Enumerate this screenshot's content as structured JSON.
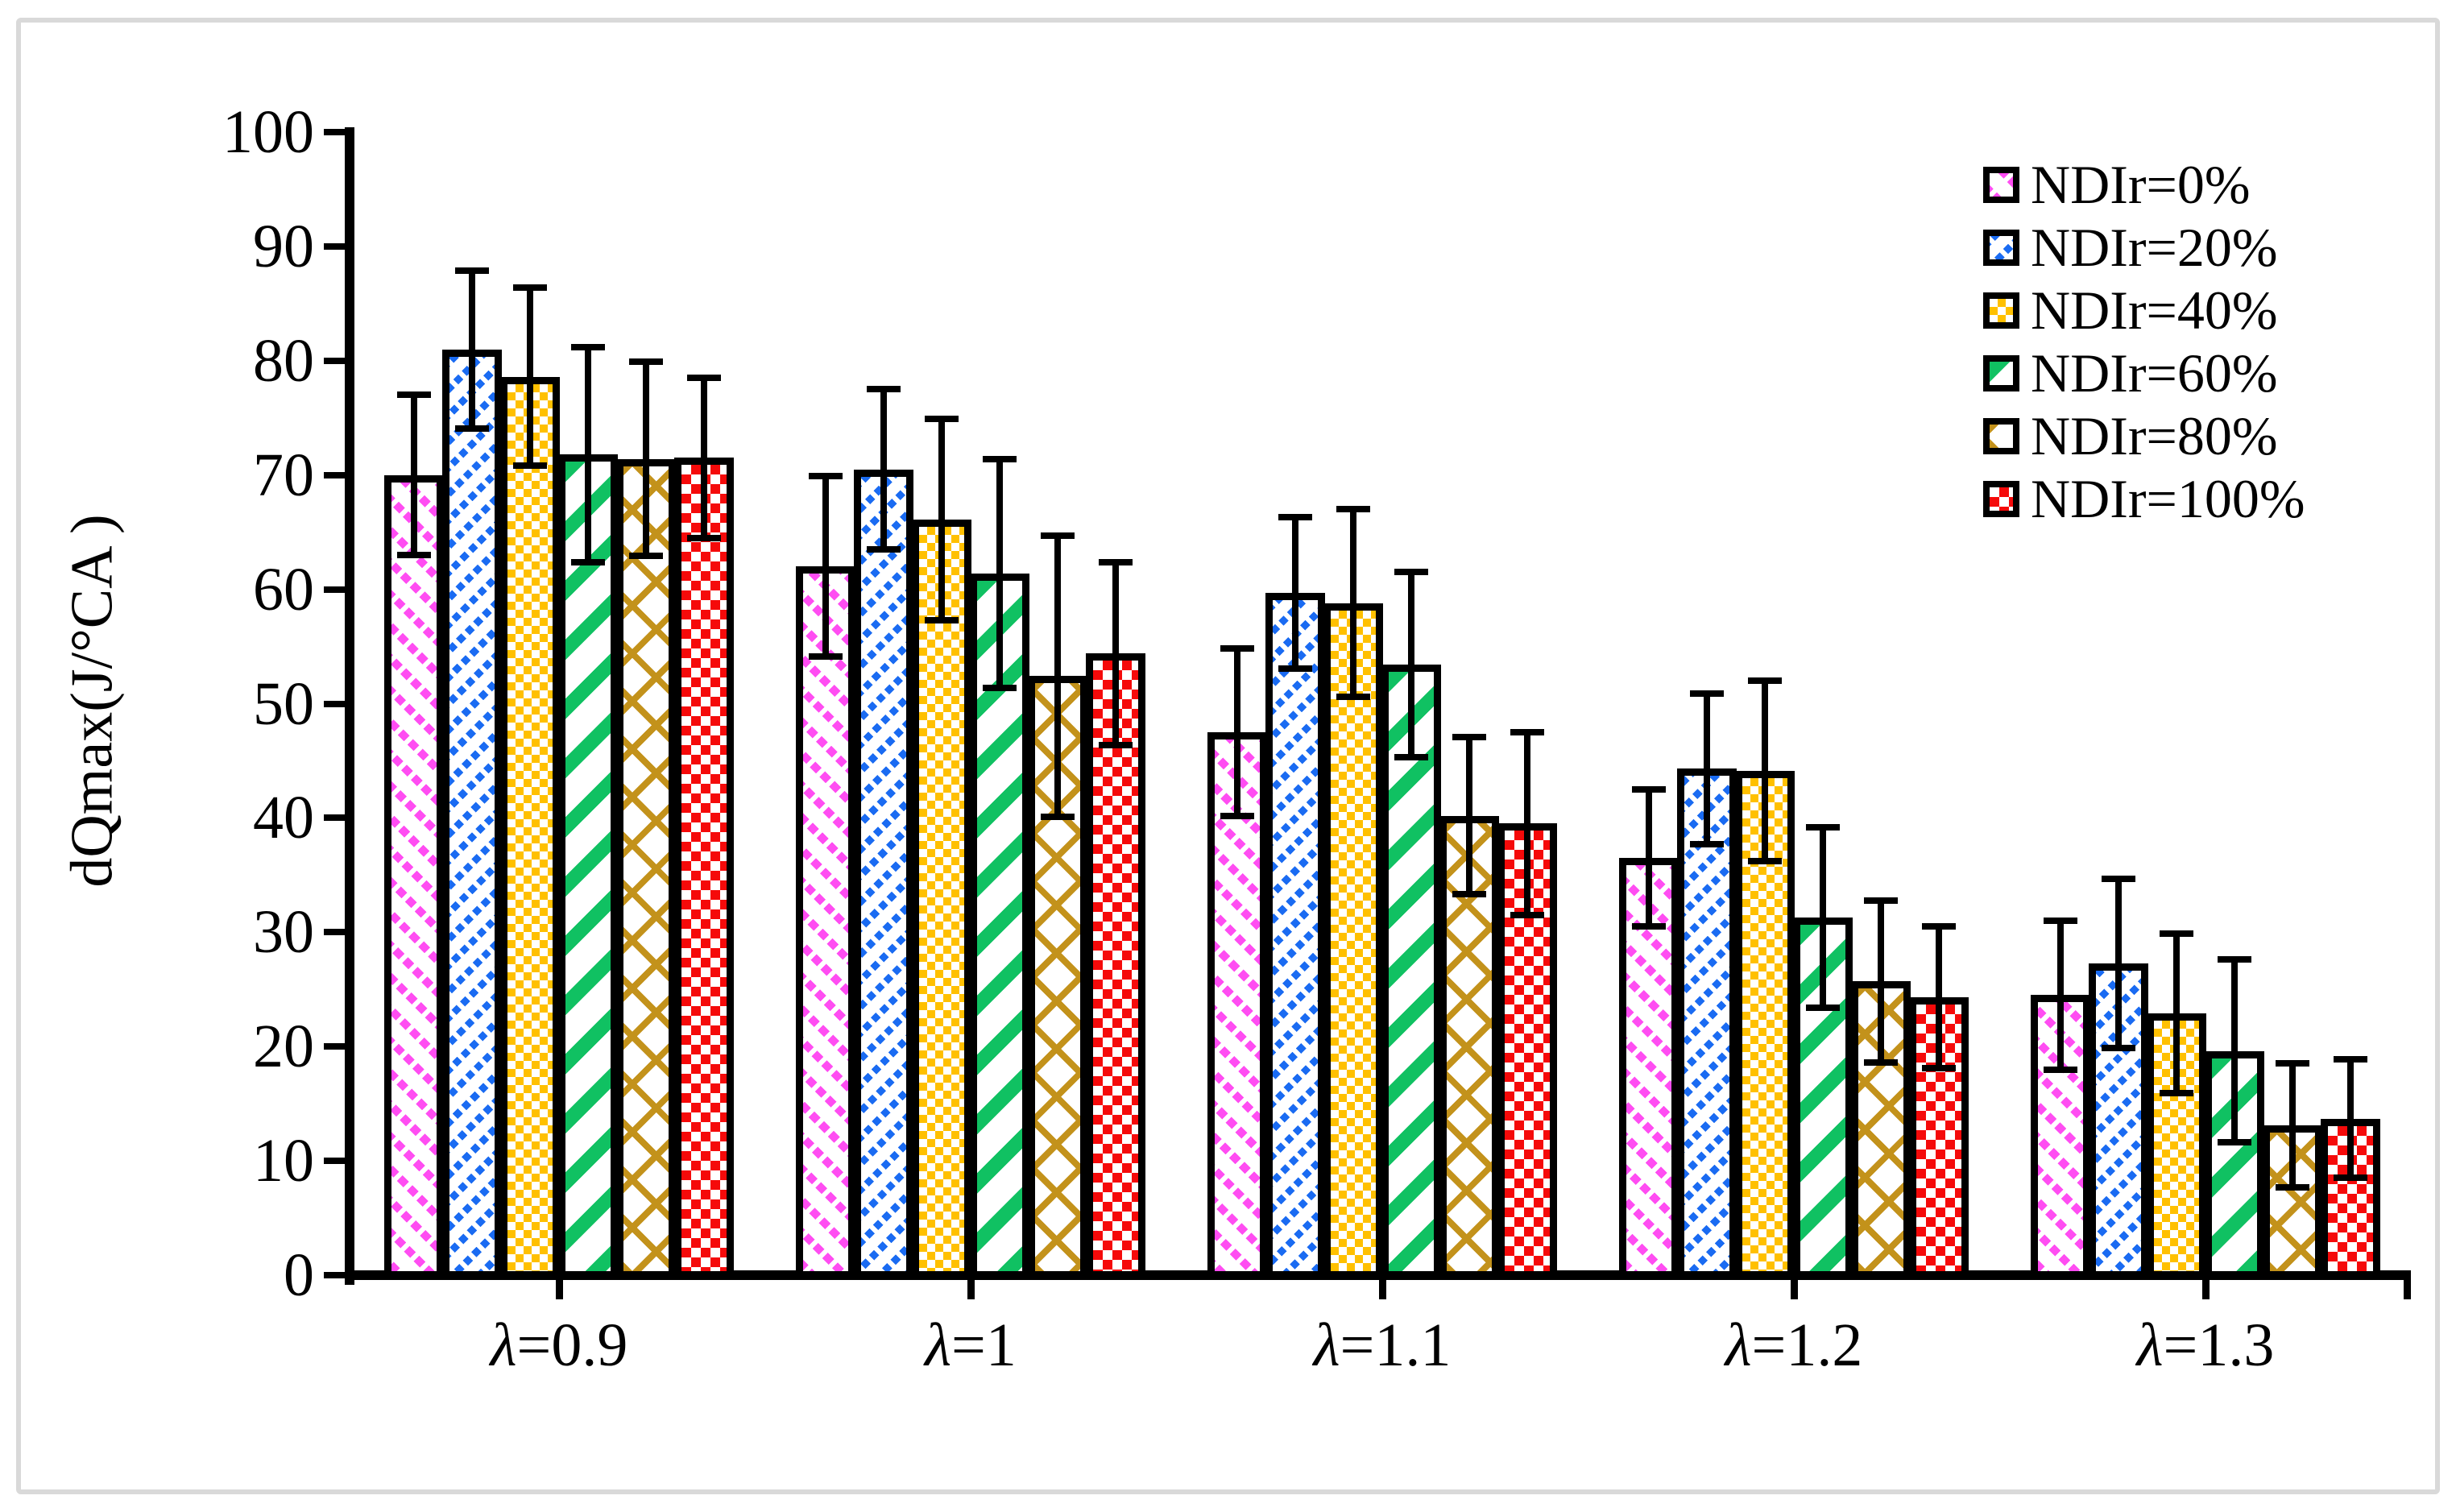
{
  "chart_data": {
    "type": "bar",
    "title": "",
    "ylabel": "dQmax(J/°CA )",
    "xlabel": "",
    "ylim": [
      0,
      100
    ],
    "ytick_step": 10,
    "yticks": [
      "0",
      "10",
      "20",
      "30",
      "40",
      "50",
      "60",
      "70",
      "80",
      "90",
      "100"
    ],
    "grid": false,
    "legend_position": "top-right",
    "categories": [
      "λ=0.9",
      "λ=1",
      "λ=1.1",
      "λ=1.2",
      "λ=1.3"
    ],
    "series": [
      {
        "name": "NDIr=0%",
        "color": "#FF4DF2",
        "pattern": "diag-dash-down",
        "values": [
          70.0,
          62.0,
          47.5,
          36.5,
          24.5
        ],
        "errors": [
          7.0,
          7.9,
          7.3,
          6.0,
          6.5
        ]
      },
      {
        "name": "NDIr=20%",
        "color": "#1A6BF2",
        "pattern": "diag-dash-up",
        "values": [
          81.0,
          70.5,
          59.7,
          44.3,
          27.3
        ],
        "errors": [
          6.9,
          7.0,
          6.6,
          6.6,
          7.4
        ]
      },
      {
        "name": "NDIr=40%",
        "color": "#FFC000",
        "pattern": "checker",
        "values": [
          78.6,
          66.1,
          58.8,
          44.1,
          22.9
        ],
        "errors": [
          7.8,
          8.8,
          8.2,
          7.9,
          7.0
        ]
      },
      {
        "name": "NDIr=60%",
        "color": "#10C162",
        "pattern": "diag-thick-up",
        "values": [
          71.8,
          61.4,
          53.4,
          31.3,
          19.6
        ],
        "errors": [
          9.4,
          10.0,
          8.1,
          7.9,
          8.0
        ]
      },
      {
        "name": "NDIr=80%",
        "color": "#C3921B",
        "pattern": "lattice",
        "values": [
          71.4,
          52.4,
          40.2,
          25.7,
          13.1
        ],
        "errors": [
          8.5,
          12.3,
          6.9,
          7.1,
          5.4
        ]
      },
      {
        "name": "NDIr=100%",
        "color": "#F50A0A",
        "pattern": "checker-fine",
        "values": [
          71.5,
          54.4,
          39.5,
          24.3,
          13.7
        ],
        "errors": [
          7.0,
          8.0,
          8.0,
          6.2,
          5.2
        ]
      }
    ]
  },
  "frame_color": "#D9D9D9"
}
